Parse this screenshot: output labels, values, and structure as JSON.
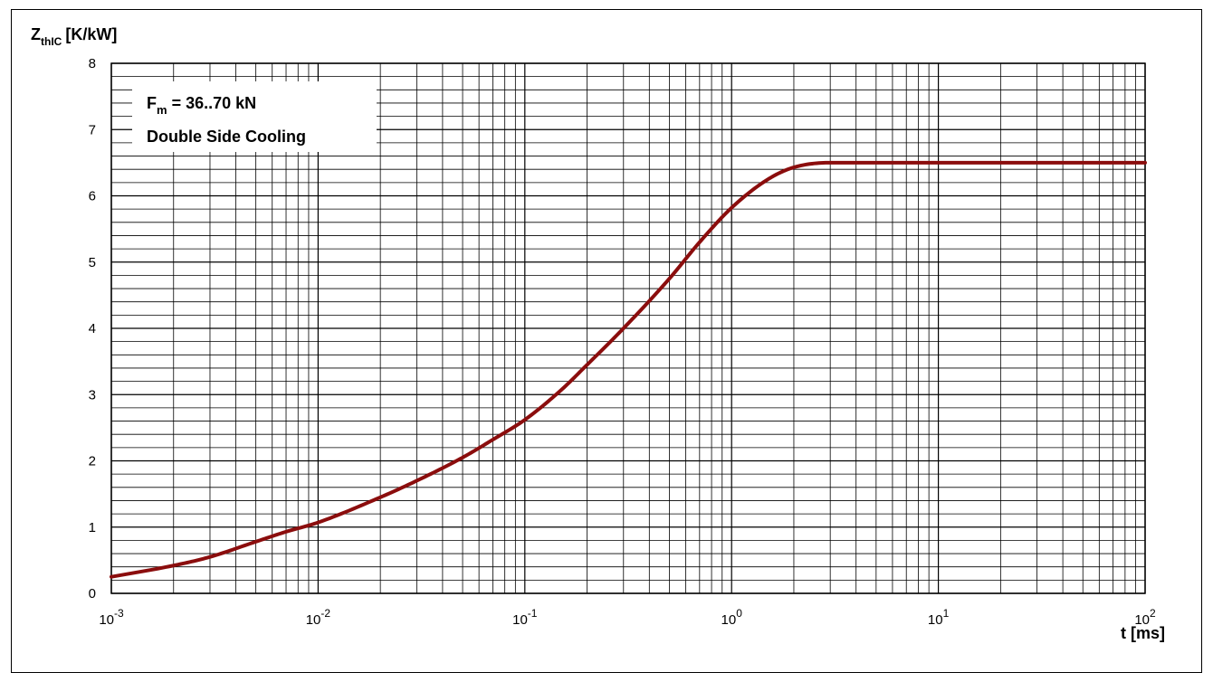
{
  "chart_data": {
    "type": "line",
    "title": "",
    "xlabel": "t [ms]",
    "ylabel_main": "Z",
    "ylabel_sub": "thIC",
    "ylabel_unit": "[K/kW]",
    "xscale": "log",
    "xlim": [
      0.001,
      100
    ],
    "ylim": [
      0,
      8
    ],
    "grid": true,
    "x_ticks": [
      {
        "base": "10",
        "exp": "-3"
      },
      {
        "base": "10",
        "exp": "-2"
      },
      {
        "base": "10",
        "exp": "-1"
      },
      {
        "base": "10",
        "exp": "0"
      },
      {
        "base": "10",
        "exp": "1"
      },
      {
        "base": "10",
        "exp": "2"
      }
    ],
    "y_ticks": [
      "0",
      "1",
      "2",
      "3",
      "4",
      "5",
      "6",
      "7",
      "8"
    ],
    "annotation": {
      "line1_main": "F",
      "line1_sub": "m",
      "line1_rest": " = 36..70 kN",
      "line2": "Double Side Cooling"
    },
    "line_color": "#8b0d0d",
    "series": [
      {
        "x": [
          0.001,
          0.002,
          0.003,
          0.005,
          0.007,
          0.01,
          0.02,
          0.03,
          0.05,
          0.07,
          0.1,
          0.15,
          0.2,
          0.3,
          0.5,
          0.7,
          1.0,
          1.5,
          2.0,
          3.0,
          5.0,
          10,
          20,
          50,
          100
        ],
        "y": [
          0.25,
          0.42,
          0.55,
          0.78,
          0.93,
          1.07,
          1.45,
          1.7,
          2.05,
          2.32,
          2.62,
          3.07,
          3.45,
          4.0,
          4.75,
          5.3,
          5.82,
          6.25,
          6.43,
          6.5,
          6.5,
          6.5,
          6.5,
          6.5,
          6.5
        ]
      }
    ]
  }
}
